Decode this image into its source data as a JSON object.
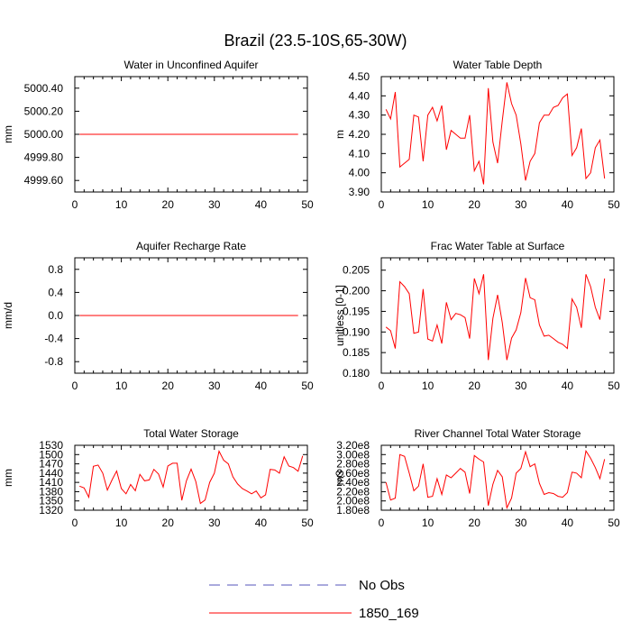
{
  "figure": {
    "title": "Brazil (23.5-10S,65-30W)",
    "line_color": "#ff0000",
    "obs_color": "#5555bb"
  },
  "legend": {
    "items": [
      {
        "label": "No Obs",
        "style": "dashed",
        "color": "#5555bb"
      },
      {
        "label": "1850_169",
        "style": "solid",
        "color": "#ff0000"
      }
    ]
  },
  "chart_data": [
    {
      "type": "line",
      "title": "Water in Unconfined Aquifer",
      "ylabel": "mm",
      "xlabel": "",
      "xlim": [
        0,
        50
      ],
      "ylim": [
        4999.5,
        5000.5
      ],
      "xticks": [
        "0",
        "10",
        "20",
        "30",
        "40",
        "50"
      ],
      "yticks": [
        {
          "value": 4999.6,
          "label": "4999.60"
        },
        {
          "value": 4999.8,
          "label": "4999.80"
        },
        {
          "value": 5000.0,
          "label": "5000.00"
        },
        {
          "value": 5000.2,
          "label": "5000.20"
        },
        {
          "value": 5000.4,
          "label": "5000.40"
        }
      ],
      "series": [
        {
          "name": "1850_169",
          "x_start": 1,
          "values": [
            5000,
            5000,
            5000,
            5000,
            5000,
            5000,
            5000,
            5000,
            5000,
            5000,
            5000,
            5000,
            5000,
            5000,
            5000,
            5000,
            5000,
            5000,
            5000,
            5000,
            5000,
            5000,
            5000,
            5000,
            5000,
            5000,
            5000,
            5000,
            5000,
            5000,
            5000,
            5000,
            5000,
            5000,
            5000,
            5000,
            5000,
            5000,
            5000,
            5000,
            5000,
            5000,
            5000,
            5000,
            5000,
            5000,
            5000,
            5000
          ]
        }
      ]
    },
    {
      "type": "line",
      "title": "Water Table Depth",
      "ylabel": "m",
      "xlabel": "",
      "xlim": [
        0,
        50
      ],
      "ylim": [
        3.9,
        4.5
      ],
      "xticks": [
        "0",
        "10",
        "20",
        "30",
        "40",
        "50"
      ],
      "yticks": [
        {
          "value": 3.9,
          "label": "3.90"
        },
        {
          "value": 4.0,
          "label": "4.00"
        },
        {
          "value": 4.1,
          "label": "4.10"
        },
        {
          "value": 4.2,
          "label": "4.20"
        },
        {
          "value": 4.3,
          "label": "4.30"
        },
        {
          "value": 4.4,
          "label": "4.40"
        },
        {
          "value": 4.5,
          "label": "4.50"
        }
      ],
      "series": [
        {
          "name": "1850_169",
          "x_start": 1,
          "values": [
            4.33,
            4.28,
            4.42,
            4.03,
            4.05,
            4.07,
            4.3,
            4.29,
            4.06,
            4.3,
            4.34,
            4.27,
            4.35,
            4.12,
            4.22,
            4.2,
            4.18,
            4.18,
            4.3,
            4.01,
            4.06,
            3.94,
            4.44,
            4.16,
            4.05,
            4.27,
            4.47,
            4.36,
            4.3,
            4.15,
            3.96,
            4.06,
            4.1,
            4.26,
            4.3,
            4.3,
            4.34,
            4.35,
            4.39,
            4.41,
            4.09,
            4.13,
            4.23,
            3.97,
            4.0,
            4.13,
            4.17,
            3.97
          ]
        }
      ]
    },
    {
      "type": "line",
      "title": "Aquifer Recharge Rate",
      "ylabel": "mm/d",
      "xlabel": "",
      "xlim": [
        0,
        50
      ],
      "ylim": [
        -1.0,
        1.0
      ],
      "xticks": [
        "0",
        "10",
        "20",
        "30",
        "40",
        "50"
      ],
      "yticks": [
        {
          "value": -0.8,
          "label": "-0.8"
        },
        {
          "value": -0.4,
          "label": "-0.4"
        },
        {
          "value": 0.0,
          "label": "0.0"
        },
        {
          "value": 0.4,
          "label": "0.4"
        },
        {
          "value": 0.8,
          "label": "0.8"
        }
      ],
      "series": [
        {
          "name": "1850_169",
          "x_start": 1,
          "values": [
            0,
            0,
            0,
            0,
            0,
            0,
            0,
            0,
            0,
            0,
            0,
            0,
            0,
            0,
            0,
            0,
            0,
            0,
            0,
            0,
            0,
            0,
            0,
            0,
            0,
            0,
            0,
            0,
            0,
            0,
            0,
            0,
            0,
            0,
            0,
            0,
            0,
            0,
            0,
            0,
            0,
            0,
            0,
            0,
            0,
            0,
            0,
            0
          ]
        }
      ]
    },
    {
      "type": "line",
      "title": "Frac Water Table at Surface",
      "ylabel": "unitless [0-1]",
      "xlabel": "",
      "xlim": [
        0,
        50
      ],
      "ylim": [
        0.18,
        0.208
      ],
      "xticks": [
        "0",
        "10",
        "20",
        "30",
        "40",
        "50"
      ],
      "yticks": [
        {
          "value": 0.18,
          "label": "0.180"
        },
        {
          "value": 0.185,
          "label": "0.185"
        },
        {
          "value": 0.19,
          "label": "0.190"
        },
        {
          "value": 0.195,
          "label": "0.195"
        },
        {
          "value": 0.2,
          "label": "0.200"
        },
        {
          "value": 0.205,
          "label": "0.205"
        }
      ],
      "series": [
        {
          "name": "1850_169",
          "x_start": 1,
          "values": [
            0.1912,
            0.1903,
            0.186,
            0.2022,
            0.201,
            0.1993,
            0.1897,
            0.19,
            0.2004,
            0.1883,
            0.1878,
            0.1917,
            0.1872,
            0.1972,
            0.193,
            0.1945,
            0.1942,
            0.1935,
            0.1884,
            0.203,
            0.1993,
            0.204,
            0.1832,
            0.1933,
            0.199,
            0.1923,
            0.1832,
            0.1885,
            0.1905,
            0.1947,
            0.2031,
            0.1983,
            0.1978,
            0.1917,
            0.189,
            0.1892,
            0.1884,
            0.1875,
            0.187,
            0.186,
            0.198,
            0.196,
            0.191,
            0.204,
            0.201,
            0.196,
            0.193,
            0.203
          ]
        }
      ]
    },
    {
      "type": "line",
      "title": "Total Water Storage",
      "ylabel": "mm",
      "xlabel": "",
      "xlim": [
        0,
        50
      ],
      "ylim": [
        1320,
        1530
      ],
      "xticks": [
        "0",
        "10",
        "20",
        "30",
        "40",
        "50"
      ],
      "yticks": [
        {
          "value": 1320,
          "label": "1320"
        },
        {
          "value": 1350,
          "label": "1350"
        },
        {
          "value": 1380,
          "label": "1380"
        },
        {
          "value": 1410,
          "label": "1410"
        },
        {
          "value": 1440,
          "label": "1440"
        },
        {
          "value": 1470,
          "label": "1470"
        },
        {
          "value": 1500,
          "label": "1500"
        },
        {
          "value": 1530,
          "label": "1530"
        }
      ],
      "series": [
        {
          "name": "1850_169",
          "x_start": 1,
          "values": [
            1398,
            1392,
            1362,
            1462,
            1466,
            1440,
            1385,
            1418,
            1447,
            1390,
            1373,
            1403,
            1383,
            1436,
            1415,
            1418,
            1452,
            1437,
            1395,
            1463,
            1472,
            1472,
            1352,
            1415,
            1453,
            1413,
            1342,
            1353,
            1410,
            1440,
            1511,
            1482,
            1470,
            1428,
            1405,
            1390,
            1382,
            1373,
            1382,
            1360,
            1370,
            1452,
            1450,
            1440,
            1493,
            1463,
            1458,
            1446,
            1496
          ]
        }
      ]
    },
    {
      "type": "line",
      "title": "River Channel Total Water Storage",
      "ylabel": "m3",
      "xlabel": "",
      "xlim": [
        0,
        50
      ],
      "ylim": [
        180000000,
        320000000
      ],
      "xticks": [
        "0",
        "10",
        "20",
        "30",
        "40",
        "50"
      ],
      "yticks": [
        {
          "value": 180000000,
          "label": "1.80e8"
        },
        {
          "value": 200000000,
          "label": "2.00e8"
        },
        {
          "value": 220000000,
          "label": "2.20e8"
        },
        {
          "value": 240000000,
          "label": "2.40e8"
        },
        {
          "value": 260000000,
          "label": "2.60e8"
        },
        {
          "value": 280000000,
          "label": "2.80e8"
        },
        {
          "value": 300000000,
          "label": "3.00e8"
        },
        {
          "value": 320000000,
          "label": "3.20e8"
        }
      ],
      "series": [
        {
          "name": "1850_169",
          "x_start": 1,
          "values": [
            240000000,
            202000000,
            206000000,
            300000000,
            296000000,
            260000000,
            222000000,
            232000000,
            280000000,
            208000000,
            210000000,
            248000000,
            214000000,
            256000000,
            250000000,
            260000000,
            270000000,
            262000000,
            216000000,
            298000000,
            290000000,
            284000000,
            190000000,
            236000000,
            266000000,
            252000000,
            185000000,
            206000000,
            260000000,
            270000000,
            306000000,
            274000000,
            280000000,
            238000000,
            214000000,
            218000000,
            216000000,
            210000000,
            208000000,
            218000000,
            262000000,
            260000000,
            250000000,
            308000000,
            292000000,
            272000000,
            248000000,
            290000000
          ]
        }
      ]
    }
  ]
}
